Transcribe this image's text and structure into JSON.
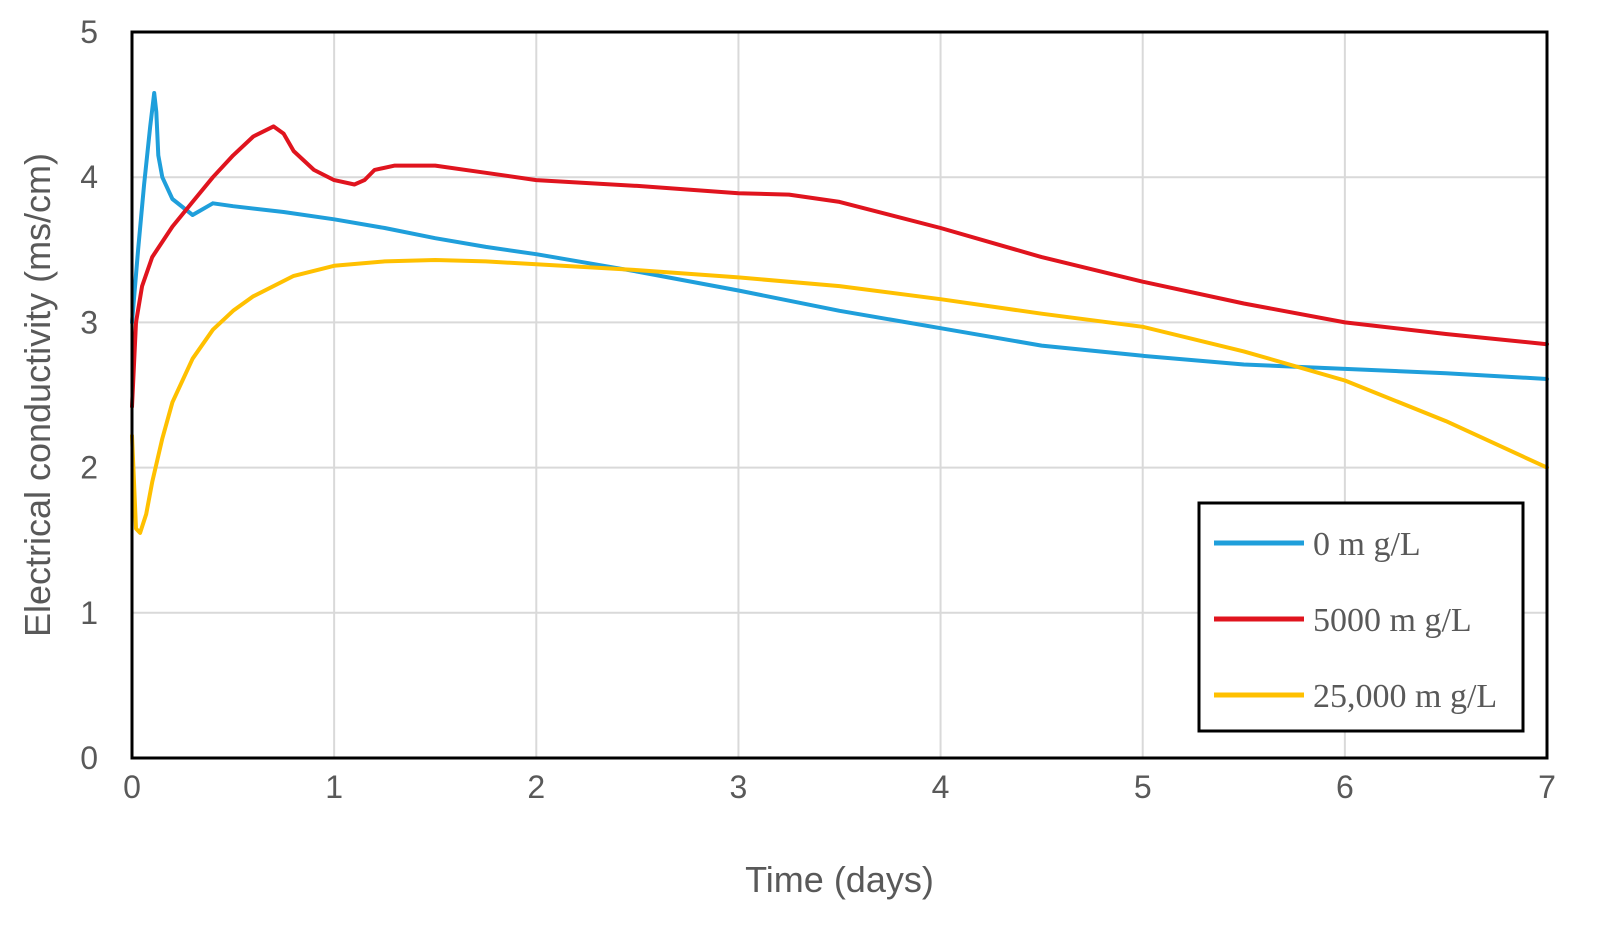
{
  "chart_data": {
    "type": "line",
    "title": "",
    "xlabel": "Time (days)",
    "ylabel": "Electrical conductivity (ms/cm)",
    "xlim": [
      0,
      7
    ],
    "ylim": [
      0,
      5
    ],
    "xticks": [
      "0",
      "1",
      "2",
      "3",
      "4",
      "5",
      "6",
      "7"
    ],
    "yticks": [
      "0",
      "1",
      "2",
      "3",
      "4",
      "5"
    ],
    "grid": true,
    "legend_position": "bottom-right",
    "series": [
      {
        "name": "0 m g/L",
        "color": "#1f9fdb",
        "x": [
          0,
          0.03,
          0.06,
          0.09,
          0.11,
          0.12,
          0.13,
          0.15,
          0.2,
          0.3,
          0.4,
          0.5,
          0.75,
          1.0,
          1.25,
          1.5,
          1.75,
          2.0,
          2.5,
          3.0,
          3.5,
          4.0,
          4.5,
          5.0,
          5.5,
          6.0,
          6.5,
          7.0
        ],
        "y": [
          3.0,
          3.5,
          3.95,
          4.35,
          4.58,
          4.45,
          4.15,
          4.0,
          3.85,
          3.74,
          3.82,
          3.8,
          3.76,
          3.71,
          3.65,
          3.58,
          3.52,
          3.47,
          3.35,
          3.22,
          3.08,
          2.96,
          2.84,
          2.77,
          2.71,
          2.68,
          2.65,
          2.61
        ]
      },
      {
        "name": "5000 m g/L",
        "color": "#e0141e",
        "x": [
          0,
          0.02,
          0.05,
          0.1,
          0.2,
          0.3,
          0.4,
          0.5,
          0.6,
          0.7,
          0.75,
          0.8,
          0.9,
          1.0,
          1.1,
          1.15,
          1.2,
          1.3,
          1.5,
          1.75,
          2.0,
          2.5,
          3.0,
          3.25,
          3.5,
          4.0,
          4.5,
          5.0,
          5.5,
          6.0,
          6.5,
          7.0
        ],
        "y": [
          2.42,
          3.0,
          3.25,
          3.45,
          3.66,
          3.83,
          4.0,
          4.15,
          4.28,
          4.35,
          4.3,
          4.18,
          4.05,
          3.98,
          3.95,
          3.98,
          4.05,
          4.08,
          4.08,
          4.03,
          3.98,
          3.94,
          3.89,
          3.88,
          3.83,
          3.65,
          3.45,
          3.28,
          3.13,
          3.0,
          2.92,
          2.85
        ]
      },
      {
        "name": "25,000 m g/L",
        "color": "#ffc000",
        "x": [
          0,
          0.02,
          0.04,
          0.07,
          0.1,
          0.15,
          0.2,
          0.3,
          0.4,
          0.5,
          0.6,
          0.8,
          1.0,
          1.25,
          1.5,
          1.75,
          2.0,
          2.5,
          3.0,
          3.5,
          4.0,
          4.5,
          5.0,
          5.5,
          6.0,
          6.5,
          7.0
        ],
        "y": [
          2.22,
          1.58,
          1.55,
          1.68,
          1.9,
          2.2,
          2.45,
          2.75,
          2.95,
          3.08,
          3.18,
          3.32,
          3.39,
          3.42,
          3.43,
          3.42,
          3.4,
          3.36,
          3.31,
          3.25,
          3.16,
          3.06,
          2.97,
          2.8,
          2.6,
          2.32,
          2.0
        ]
      }
    ]
  }
}
